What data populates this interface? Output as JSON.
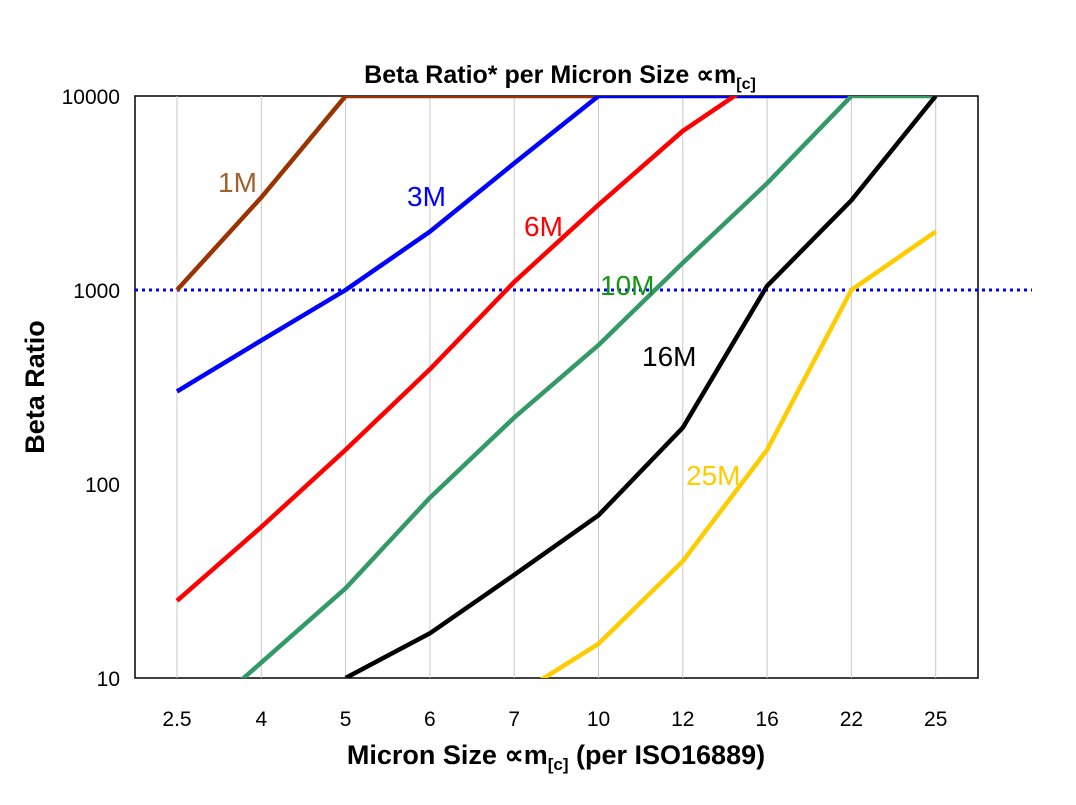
{
  "chart_data": {
    "type": "line",
    "title": "Beta Ratio* per Micron Size ∝m",
    "title_subscript": "[c]",
    "xlabel": "Micron Size ∝m",
    "xlabel_subscript": "[c]",
    "xlabel_suffix": " (per ISO16889)",
    "ylabel": "Beta Ratio",
    "y_scale": "log",
    "ylim": [
      10,
      10000
    ],
    "y_ticks": [
      "10000",
      "1000",
      "100",
      "10"
    ],
    "y_tick_values": [
      10000,
      1000,
      100,
      10
    ],
    "categories": [
      "2.5",
      "4",
      "5",
      "6",
      "7",
      "10",
      "12",
      "16",
      "22",
      "25"
    ],
    "grid": "vertical",
    "reference_line": {
      "value": 1000,
      "style": "dotted",
      "color": "#0000FF"
    },
    "series": [
      {
        "name": "1M",
        "color": "#993300",
        "label_color": "#A0622D",
        "values": [
          1000,
          3000,
          10000,
          10000,
          10000,
          10000,
          null,
          null,
          null,
          null
        ]
      },
      {
        "name": "3M",
        "color": "#0000FF",
        "label_color": "#0000FF",
        "values": [
          300,
          550,
          1000,
          2000,
          4500,
          10000,
          10000,
          10000,
          10000,
          null
        ]
      },
      {
        "name": "6M",
        "color": "#FF0000",
        "label_color": "#FF0000",
        "values": [
          25,
          60,
          150,
          390,
          1100,
          2750,
          6600,
          13000,
          null,
          null
        ]
      },
      {
        "name": "10M",
        "color": "#339966",
        "label_color": "#149614",
        "values": [
          5,
          12,
          29,
          85,
          220,
          520,
          1380,
          3550,
          10000,
          10000
        ]
      },
      {
        "name": "16M",
        "color": "#000000",
        "label_color": "#000000",
        "values": [
          null,
          null,
          10,
          17,
          34,
          69,
          195,
          1050,
          2900,
          10000
        ]
      },
      {
        "name": "25M",
        "color": "#FFCC00",
        "label_color": "#FFCC00",
        "values": [
          null,
          null,
          null,
          null,
          8,
          15,
          40,
          150,
          1000,
          2000
        ]
      }
    ]
  }
}
